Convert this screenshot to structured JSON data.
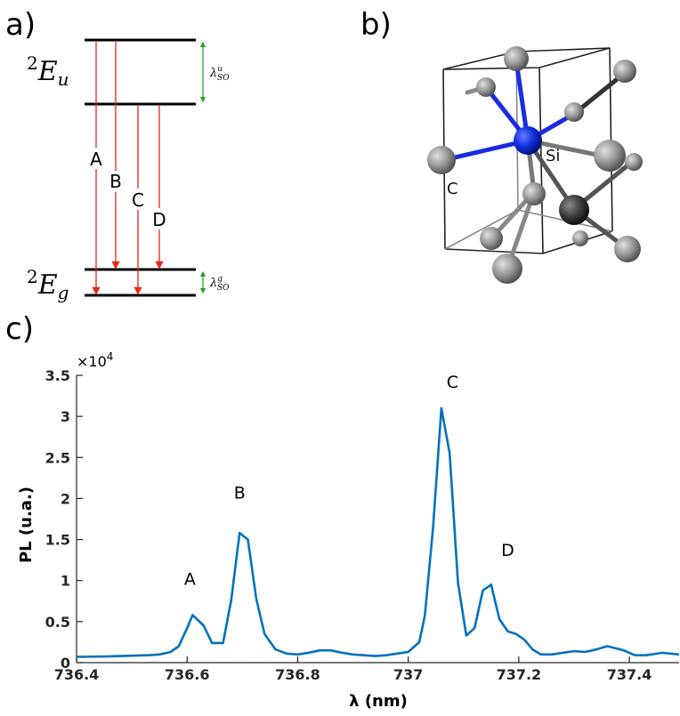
{
  "panels": {
    "a": "a)",
    "b": "b)",
    "c": "c)"
  },
  "energy": {
    "upper_level": {
      "sup": "2",
      "main": "E",
      "sub": "u"
    },
    "lower_level": {
      "sup": "2",
      "main": "E",
      "sub": "g"
    },
    "split_upper": {
      "main": "λ",
      "sup": "u",
      "sub": "SO"
    },
    "split_lower": {
      "main": "λ",
      "sup": "g",
      "sub": "SO"
    },
    "transitions": [
      "A",
      "B",
      "C",
      "D"
    ],
    "colors": {
      "transition": "#e8261b",
      "splitting": "#2ca02c",
      "level": "#000000"
    }
  },
  "molecule": {
    "center_label": "Si",
    "ligand_label": "C",
    "colors": {
      "center": "#1030e0",
      "ligand": "#8c8c8c",
      "bond_center": "#1a2be0"
    }
  },
  "chart_data": {
    "type": "line",
    "xlabel": "λ (nm)",
    "ylabel": "PL (u.a.)",
    "y_multiplier": "×10",
    "y_multiplier_exp": "4",
    "xlim": [
      736.4,
      737.49
    ],
    "ylim": [
      0,
      3.5
    ],
    "xticks": [
      736.4,
      736.6,
      736.8,
      737,
      737.2,
      737.4
    ],
    "xtick_labels": [
      "736.4",
      "736.6",
      "736.8",
      "737",
      "737.2",
      "737.4"
    ],
    "yticks": [
      0,
      0.5,
      1,
      1.5,
      2,
      2.5,
      3,
      3.5
    ],
    "ytick_labels": [
      "0",
      "0.5",
      "1",
      "1.5",
      "2",
      "2.5",
      "3",
      "3.5"
    ],
    "line_color": "#0072bd",
    "grid": false,
    "annotations": [
      {
        "text": "A",
        "x": 736.605,
        "y": 0.95
      },
      {
        "text": "B",
        "x": 736.695,
        "y": 2.0
      },
      {
        "text": "C",
        "x": 737.08,
        "y": 3.35
      },
      {
        "text": "D",
        "x": 737.18,
        "y": 1.3
      }
    ],
    "series": [
      {
        "x": [
          736.4,
          736.45,
          736.5,
          736.53,
          736.55,
          736.57,
          736.585,
          736.6,
          736.61,
          736.63,
          736.645,
          736.665,
          736.68,
          736.695,
          736.71,
          736.725,
          736.74,
          736.76,
          736.78,
          736.8,
          736.82,
          736.84,
          736.86,
          736.88,
          736.9,
          736.92,
          736.94,
          736.96,
          736.98,
          737.0,
          737.02,
          737.03,
          737.045,
          737.06,
          737.075,
          737.09,
          737.105,
          737.12,
          737.135,
          737.15,
          737.165,
          737.18,
          737.195,
          737.21,
          737.225,
          737.24,
          737.26,
          737.28,
          737.3,
          737.32,
          737.34,
          737.36,
          737.39,
          737.41,
          737.43,
          737.46,
          737.49
        ],
        "y": [
          0.07,
          0.075,
          0.085,
          0.09,
          0.1,
          0.13,
          0.2,
          0.42,
          0.58,
          0.45,
          0.24,
          0.24,
          0.77,
          1.58,
          1.5,
          0.78,
          0.35,
          0.16,
          0.11,
          0.1,
          0.12,
          0.15,
          0.15,
          0.12,
          0.1,
          0.09,
          0.08,
          0.09,
          0.11,
          0.13,
          0.25,
          0.57,
          1.65,
          3.1,
          2.55,
          0.97,
          0.33,
          0.42,
          0.88,
          0.95,
          0.53,
          0.38,
          0.35,
          0.28,
          0.16,
          0.1,
          0.1,
          0.12,
          0.14,
          0.13,
          0.16,
          0.2,
          0.15,
          0.09,
          0.09,
          0.12,
          0.1
        ]
      }
    ]
  }
}
